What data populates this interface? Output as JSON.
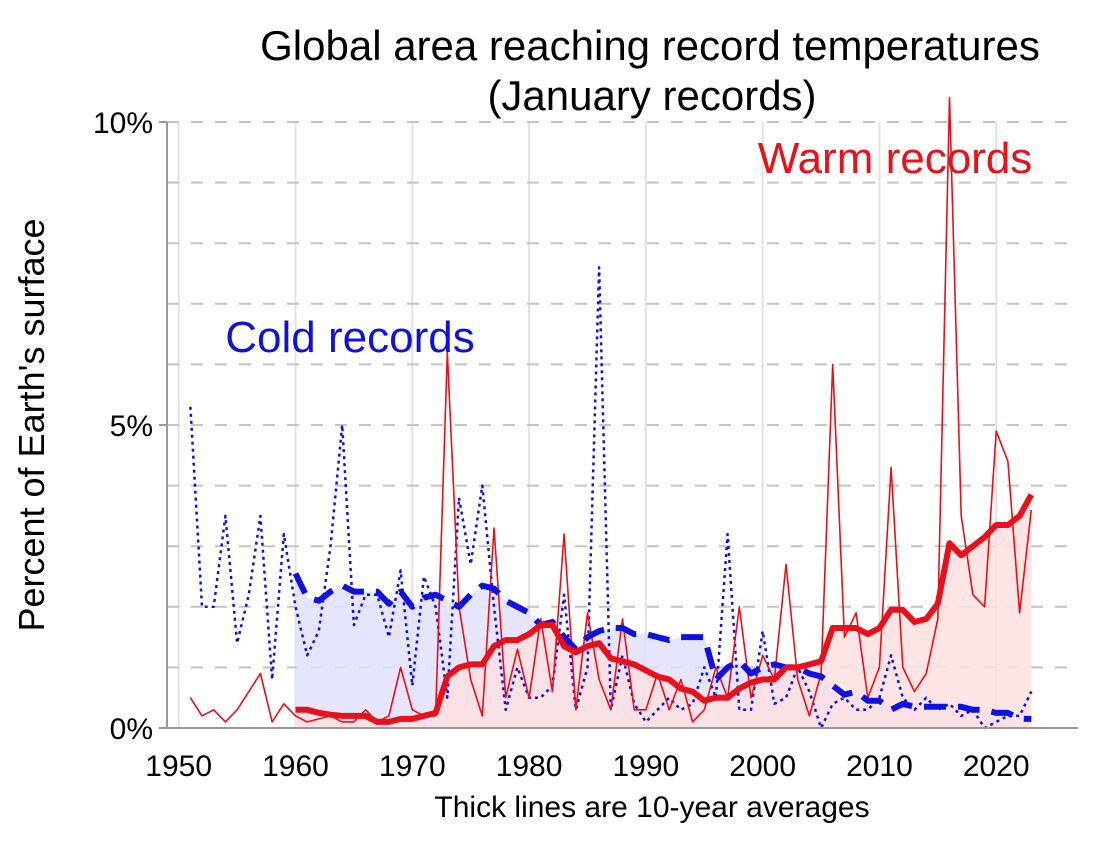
{
  "chart_data": {
    "type": "line",
    "title": "Global area reaching record temperatures",
    "subtitle": "(January records)",
    "xlabel": "Thick lines are 10-year averages",
    "ylabel": "Percent of Earth's surface",
    "xlim": [
      1949,
      2027
    ],
    "ylim": [
      0,
      10
    ],
    "x_ticks": [
      1950,
      1960,
      1970,
      1980,
      1990,
      2000,
      2010,
      2020
    ],
    "x_tick_labels": [
      "1950",
      "1960",
      "1970",
      "1980",
      "1990",
      "2000",
      "2010",
      "2020"
    ],
    "y_ticks": [
      0,
      5,
      10
    ],
    "y_tick_labels": [
      "0%",
      "5%",
      "10%"
    ],
    "grid": "dashed horizontal every 1%, vertical at decades",
    "annotations": [
      {
        "text": "Warm records",
        "color": "#e8101a"
      },
      {
        "text": "Cold records",
        "color": "#1010e0"
      }
    ],
    "colors": {
      "warm": "#e8101a",
      "cold": "#1010e0",
      "warm_fill": "#fde0e0",
      "cold_fill": "#e0e0fa"
    },
    "series": [
      {
        "style": "thin-solid",
        "color": "#e8101a",
        "x": [
          1951,
          1952,
          1953,
          1954,
          1955,
          1956,
          1957,
          1958,
          1959,
          1960,
          1961,
          1962,
          1963,
          1964,
          1965,
          1966,
          1967,
          1968,
          1969,
          1970,
          1971,
          1972,
          1973,
          1974,
          1975,
          1976,
          1977,
          1978,
          1979,
          1980,
          1981,
          1982,
          1983,
          1984,
          1985,
          1986,
          1987,
          1988,
          1989,
          1990,
          1991,
          1992,
          1993,
          1994,
          1995,
          1996,
          1997,
          1998,
          1999,
          2000,
          2001,
          2002,
          2003,
          2004,
          2005,
          2006,
          2007,
          2008,
          2009,
          2010,
          2011,
          2012,
          2013,
          2014,
          2015,
          2016,
          2017,
          2018,
          2019,
          2020,
          2021,
          2022,
          2023
        ],
        "y": [
          0.5,
          0.2,
          0.3,
          0.1,
          0.3,
          0.6,
          0.9,
          0.1,
          0.4,
          0.2,
          0.1,
          0.15,
          0.2,
          0.1,
          0.1,
          0.3,
          0.1,
          0.2,
          1.0,
          0.3,
          0.2,
          0.2,
          6.2,
          2.0,
          0.8,
          0.2,
          3.3,
          0.5,
          1.3,
          0.5,
          1.8,
          0.6,
          3.2,
          0.3,
          1.9,
          0.8,
          0.3,
          1.8,
          0.3,
          0.3,
          0.9,
          0.3,
          0.8,
          0.1,
          0.3,
          1.0,
          0.5,
          2.0,
          0.5,
          1.2,
          0.8,
          2.7,
          0.8,
          0.2,
          0.9,
          6.0,
          1.5,
          1.9,
          0.5,
          1.0,
          4.3,
          1.0,
          0.6,
          0.9,
          1.8,
          10.4,
          3.5,
          2.2,
          2.0,
          4.9,
          4.4,
          1.9,
          3.6
        ]
      },
      {
        "style": "thick-solid",
        "color": "#e8101a",
        "x": [
          1960,
          1961,
          1962,
          1963,
          1964,
          1965,
          1966,
          1967,
          1968,
          1969,
          1970,
          1971,
          1972,
          1973,
          1974,
          1975,
          1976,
          1977,
          1978,
          1979,
          1980,
          1981,
          1982,
          1983,
          1984,
          1985,
          1986,
          1987,
          1988,
          1989,
          1990,
          1991,
          1992,
          1993,
          1994,
          1995,
          1996,
          1997,
          1998,
          1999,
          2000,
          2001,
          2002,
          2003,
          2004,
          2005,
          2006,
          2007,
          2008,
          2009,
          2010,
          2011,
          2012,
          2013,
          2014,
          2015,
          2016,
          2017,
          2018,
          2019,
          2020,
          2021,
          2022,
          2023
        ],
        "y": [
          0.3,
          0.3,
          0.25,
          0.22,
          0.2,
          0.2,
          0.2,
          0.1,
          0.1,
          0.15,
          0.15,
          0.2,
          0.25,
          0.85,
          1.0,
          1.05,
          1.05,
          1.35,
          1.45,
          1.45,
          1.55,
          1.7,
          1.7,
          1.35,
          1.25,
          1.35,
          1.4,
          1.15,
          1.1,
          1.05,
          0.95,
          0.85,
          0.8,
          0.65,
          0.6,
          0.45,
          0.5,
          0.5,
          0.65,
          0.75,
          0.8,
          0.8,
          1.0,
          1.0,
          1.05,
          1.1,
          1.65,
          1.65,
          1.65,
          1.55,
          1.65,
          1.95,
          1.95,
          1.75,
          1.8,
          2.05,
          3.05,
          2.85,
          3.0,
          3.15,
          3.35,
          3.35,
          3.5,
          3.85
        ]
      },
      {
        "style": "thin-dotted",
        "color": "#1010e0",
        "x": [
          1951,
          1952,
          1953,
          1954,
          1955,
          1956,
          1957,
          1958,
          1959,
          1960,
          1961,
          1962,
          1963,
          1964,
          1965,
          1966,
          1967,
          1968,
          1969,
          1970,
          1971,
          1972,
          1973,
          1974,
          1975,
          1976,
          1977,
          1978,
          1979,
          1980,
          1981,
          1982,
          1983,
          1984,
          1985,
          1986,
          1987,
          1988,
          1989,
          1990,
          1991,
          1992,
          1993,
          1994,
          1995,
          1996,
          1997,
          1998,
          1999,
          2000,
          2001,
          2002,
          2003,
          2004,
          2005,
          2006,
          2007,
          2008,
          2009,
          2010,
          2011,
          2012,
          2013,
          2014,
          2015,
          2016,
          2017,
          2018,
          2019,
          2020,
          2021,
          2022,
          2023
        ],
        "y": [
          5.3,
          2.0,
          2.0,
          3.5,
          1.4,
          2.2,
          3.5,
          0.8,
          3.2,
          2.0,
          1.2,
          1.6,
          3.0,
          5.0,
          1.7,
          2.2,
          2.2,
          1.5,
          2.6,
          0.7,
          2.5,
          2.0,
          0.5,
          3.8,
          2.7,
          4.0,
          2.0,
          0.3,
          1.0,
          0.5,
          0.5,
          0.7,
          2.2,
          0.3,
          1.0,
          7.6,
          0.3,
          1.2,
          0.4,
          0.1,
          0.3,
          0.5,
          0.3,
          0.4,
          1.0,
          0.5,
          3.2,
          0.3,
          0.3,
          1.6,
          0.4,
          0.5,
          1.0,
          0.6,
          0.0,
          0.4,
          0.5,
          0.3,
          0.3,
          0.5,
          1.2,
          0.5,
          0.3,
          0.5,
          0.3,
          0.4,
          0.2,
          0.3,
          0.0,
          0.1,
          0.2,
          0.2,
          0.6
        ]
      },
      {
        "style": "thick-dashed",
        "color": "#1010e0",
        "x": [
          1960,
          1961,
          1962,
          1963,
          1964,
          1965,
          1966,
          1967,
          1968,
          1969,
          1970,
          1971,
          1972,
          1973,
          1974,
          1975,
          1976,
          1977,
          1978,
          1979,
          1980,
          1981,
          1982,
          1983,
          1984,
          1985,
          1986,
          1987,
          1988,
          1989,
          1990,
          1991,
          1992,
          1993,
          1994,
          1995,
          1996,
          1997,
          1998,
          1999,
          2000,
          2001,
          2002,
          2003,
          2004,
          2005,
          2006,
          2007,
          2008,
          2009,
          2010,
          2011,
          2012,
          2013,
          2014,
          2015,
          2016,
          2017,
          2018,
          2019,
          2020,
          2021,
          2022,
          2023
        ],
        "y": [
          2.55,
          2.15,
          2.1,
          2.25,
          2.35,
          2.25,
          2.25,
          2.25,
          2.05,
          2.25,
          2.0,
          2.15,
          2.2,
          2.1,
          2.0,
          2.2,
          2.35,
          2.3,
          2.1,
          2.0,
          1.9,
          1.7,
          1.75,
          1.5,
          1.3,
          1.5,
          1.6,
          1.65,
          1.65,
          1.55,
          1.55,
          1.5,
          1.45,
          1.5,
          1.5,
          1.5,
          0.8,
          1.0,
          1.1,
          0.9,
          1.0,
          1.05,
          1.0,
          1.0,
          0.9,
          0.85,
          0.7,
          0.55,
          0.6,
          0.45,
          0.45,
          0.3,
          0.4,
          0.35,
          0.35,
          0.35,
          0.35,
          0.35,
          0.3,
          0.3,
          0.25,
          0.25,
          0.15,
          0.15
        ]
      }
    ]
  }
}
